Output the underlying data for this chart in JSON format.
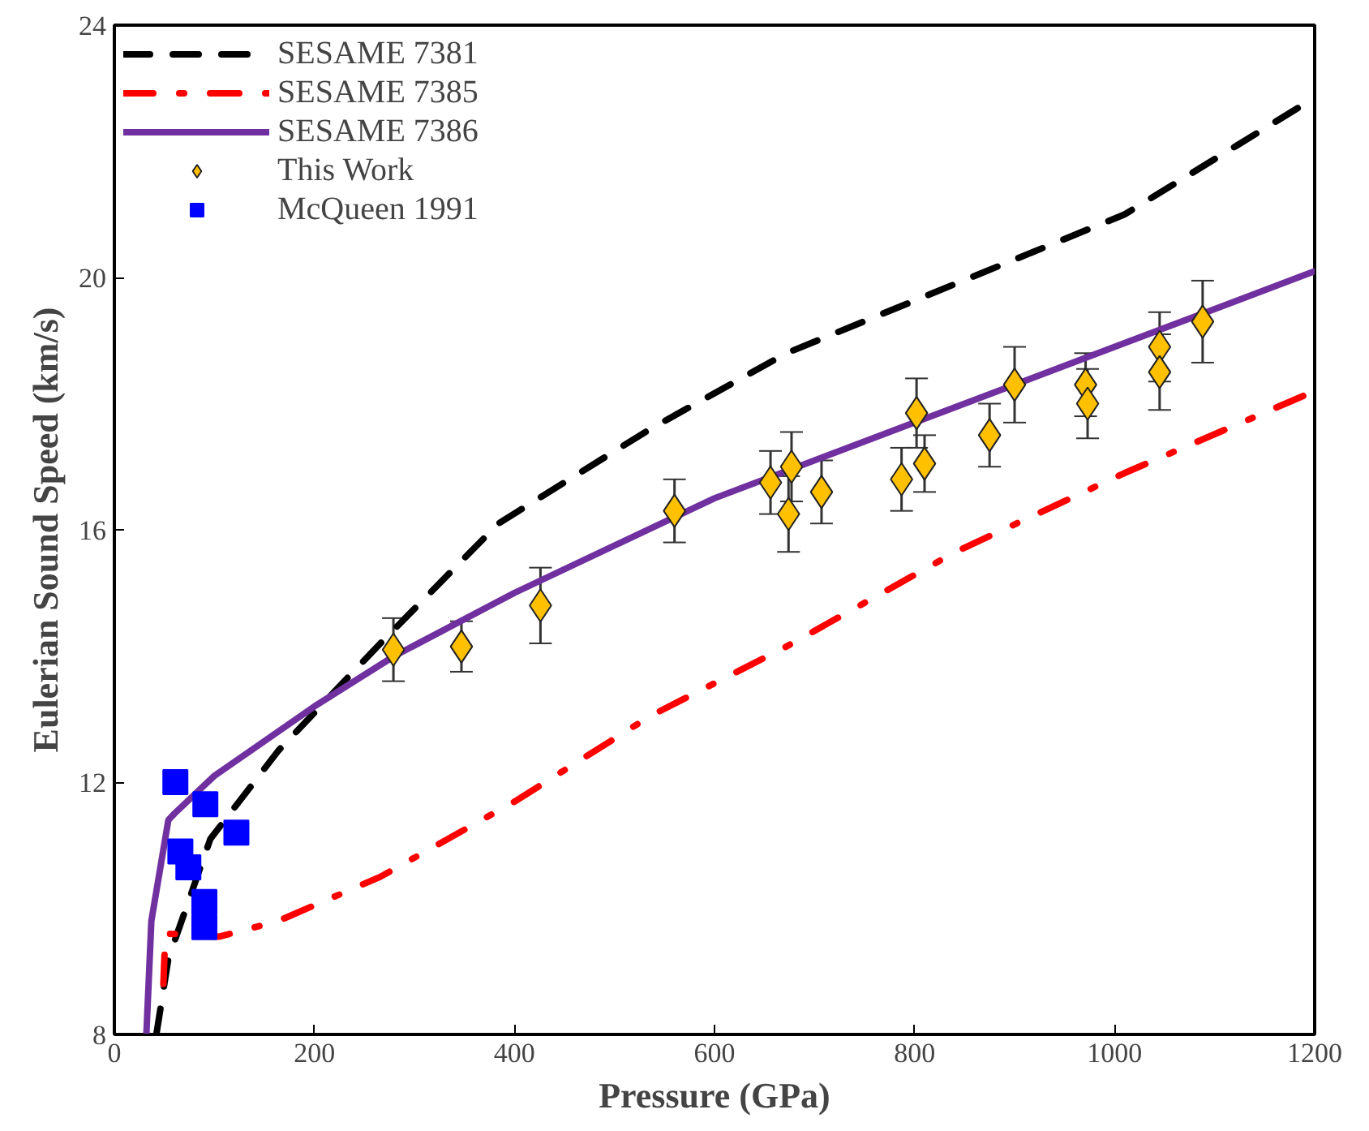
{
  "chart_data": {
    "type": "line",
    "xlabel": "Pressure (GPa)",
    "ylabel": "Eulerian Sound Speed (km/s)",
    "xlim": [
      0,
      1200
    ],
    "ylim": [
      8,
      24
    ],
    "xticks": [
      0,
      200,
      400,
      600,
      800,
      1000,
      1200
    ],
    "yticks": [
      8,
      12,
      16,
      20,
      24
    ],
    "grid": false,
    "legend": "top left",
    "series": [
      {
        "name": "SESAME 7381",
        "color": "#000000",
        "line_style": "dashed",
        "x": [
          42,
          54,
          96,
          164,
          266,
          384,
          536,
          672,
          841,
          1010,
          1200
        ],
        "values": [
          8,
          9.2,
          11.1,
          12.5,
          14.2,
          16.1,
          17.6,
          18.8,
          19.9,
          21.0,
          22.85
        ]
      },
      {
        "name": "SESAME 7385",
        "color": "#ff0000",
        "line_style": "dashdot",
        "x": [
          49,
          51,
          105,
          164,
          266,
          401,
          536,
          672,
          841,
          1010,
          1200
        ],
        "values": [
          8.8,
          9.6,
          9.55,
          9.8,
          10.5,
          11.7,
          13.05,
          14.15,
          15.65,
          16.9,
          18.2
        ]
      },
      {
        "name": "SESAME 7386",
        "color": "#7030a0",
        "line_style": "solid",
        "x": [
          32,
          37,
          54,
          60,
          100,
          200,
          280,
          400,
          600,
          800,
          1000,
          1200
        ],
        "values": [
          8,
          9.8,
          11.4,
          11.5,
          12.1,
          13.2,
          14.0,
          15.0,
          16.5,
          17.7,
          18.9,
          20.1
        ]
      },
      {
        "name": "This Work",
        "type": "scatter",
        "color": "#ffc000",
        "marker": "diamond",
        "x": [
          279,
          347,
          426,
          560,
          656,
          677,
          674,
          707,
          787,
          810,
          802,
          875,
          900,
          971,
          973,
          1045,
          1045,
          1088
        ],
        "values": [
          14.1,
          14.15,
          14.8,
          16.3,
          16.75,
          17.0,
          16.25,
          16.6,
          16.8,
          17.05,
          17.85,
          17.5,
          18.3,
          18.3,
          18.0,
          18.9,
          18.5,
          19.3
        ],
        "errors": [
          0.5,
          0.4,
          0.6,
          0.5,
          0.5,
          0.55,
          0.6,
          0.5,
          0.5,
          0.45,
          0.55,
          0.5,
          0.6,
          0.5,
          0.55,
          0.55,
          0.6,
          0.65
        ]
      },
      {
        "name": "McQueen 1991",
        "type": "scatter",
        "color": "#0000ff",
        "marker": "square",
        "x": [
          61,
          91,
          122,
          66,
          74,
          90,
          90
        ],
        "values": [
          12.0,
          11.65,
          11.2,
          10.9,
          10.65,
          10.1,
          9.7
        ]
      }
    ]
  }
}
